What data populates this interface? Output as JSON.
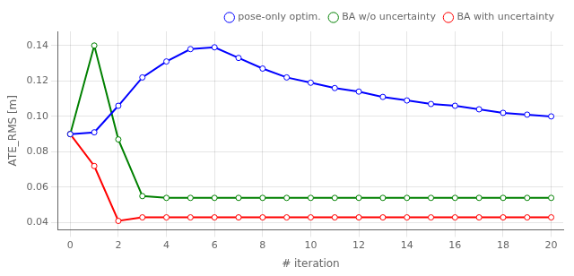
{
  "chart_data": {
    "type": "line",
    "x": [
      0,
      1,
      2,
      3,
      4,
      5,
      6,
      7,
      8,
      9,
      10,
      11,
      12,
      13,
      14,
      15,
      16,
      17,
      18,
      19,
      20
    ],
    "series": [
      {
        "name": "pose-only optim.",
        "color": "#0000ff",
        "marker": "o",
        "values": [
          0.09,
          0.091,
          0.106,
          0.122,
          0.131,
          0.138,
          0.139,
          0.133,
          0.127,
          0.122,
          0.119,
          0.116,
          0.114,
          0.111,
          0.109,
          0.107,
          0.106,
          0.104,
          0.102,
          0.101,
          0.1
        ]
      },
      {
        "name": "BA w/o uncertainty",
        "color": "#008000",
        "marker": "o",
        "values": [
          0.09,
          0.14,
          0.087,
          0.055,
          0.054,
          0.054,
          0.054,
          0.054,
          0.054,
          0.054,
          0.054,
          0.054,
          0.054,
          0.054,
          0.054,
          0.054,
          0.054,
          0.054,
          0.054,
          0.054,
          0.054
        ]
      },
      {
        "name": "BA with uncertainty",
        "color": "#ff0000",
        "marker": "o",
        "values": [
          0.09,
          0.072,
          0.041,
          0.043,
          0.043,
          0.043,
          0.043,
          0.043,
          0.043,
          0.043,
          0.043,
          0.043,
          0.043,
          0.043,
          0.043,
          0.043,
          0.043,
          0.043,
          0.043,
          0.043,
          0.043
        ]
      }
    ],
    "x_label": "# iteration",
    "y_label": "ATE_RMS [m]",
    "xlim": [
      -0.5,
      20.5
    ],
    "ylim": [
      0.036,
      0.148
    ],
    "xticks": [
      0,
      2,
      4,
      6,
      8,
      10,
      12,
      14,
      16,
      18,
      20
    ],
    "yticks": [
      0.04,
      0.06,
      0.08,
      {
        "value": 0.1,
        "label": "0.10"
      },
      0.12,
      0.14
    ],
    "grid": true,
    "legend": "upper right"
  }
}
